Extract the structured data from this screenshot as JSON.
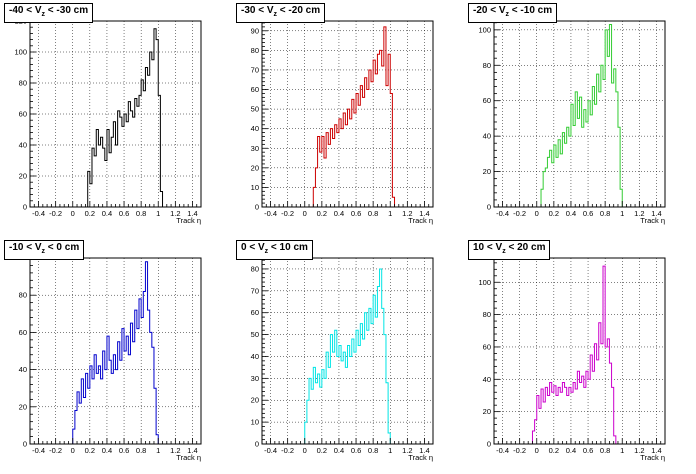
{
  "chart_data": [
    {
      "type": "step-histogram",
      "title": "-40 < V_z < -30 cm",
      "title_parts": {
        "pre": "-40 < V",
        "sub": "z",
        "post": " < -30 cm"
      },
      "xlabel": "Track η",
      "color": "#000000",
      "xlim": [
        -0.5,
        1.5
      ],
      "ylim": [
        0,
        120
      ],
      "xticks": [
        "-0.4",
        "-0.2",
        "0",
        "0.2",
        "0.4",
        "0.6",
        "0.8",
        "1",
        "1.2",
        "1.4"
      ],
      "yticks": [
        0,
        20,
        40,
        60,
        80,
        100,
        120
      ],
      "bins": [
        [
          0.175,
          0.2,
          23
        ],
        [
          0.2,
          0.225,
          15
        ],
        [
          0.225,
          0.25,
          38
        ],
        [
          0.25,
          0.275,
          33
        ],
        [
          0.275,
          0.3,
          50
        ],
        [
          0.3,
          0.325,
          40
        ],
        [
          0.325,
          0.35,
          45
        ],
        [
          0.35,
          0.375,
          38
        ],
        [
          0.375,
          0.4,
          30
        ],
        [
          0.4,
          0.425,
          50
        ],
        [
          0.425,
          0.45,
          35
        ],
        [
          0.45,
          0.475,
          45
        ],
        [
          0.475,
          0.5,
          55
        ],
        [
          0.5,
          0.525,
          40
        ],
        [
          0.525,
          0.55,
          62
        ],
        [
          0.55,
          0.575,
          58
        ],
        [
          0.575,
          0.6,
          52
        ],
        [
          0.6,
          0.625,
          60
        ],
        [
          0.625,
          0.65,
          55
        ],
        [
          0.65,
          0.675,
          68
        ],
        [
          0.675,
          0.7,
          62
        ],
        [
          0.7,
          0.725,
          58
        ],
        [
          0.725,
          0.75,
          70
        ],
        [
          0.75,
          0.775,
          65
        ],
        [
          0.775,
          0.8,
          72
        ],
        [
          0.8,
          0.825,
          82
        ],
        [
          0.825,
          0.85,
          75
        ],
        [
          0.85,
          0.875,
          90
        ],
        [
          0.875,
          0.9,
          85
        ],
        [
          0.9,
          0.925,
          100
        ],
        [
          0.925,
          0.95,
          95
        ],
        [
          0.95,
          0.975,
          115
        ],
        [
          0.975,
          1.0,
          108
        ],
        [
          1.0,
          1.025,
          72
        ],
        [
          1.025,
          1.05,
          10
        ]
      ]
    },
    {
      "type": "step-histogram",
      "title": "-30 < V_z < -20 cm",
      "title_parts": {
        "pre": "-30 < V",
        "sub": "z",
        "post": " < -20 cm"
      },
      "xlabel": "Track η",
      "color": "#cc0000",
      "xlim": [
        -0.5,
        1.5
      ],
      "ylim": [
        0,
        95
      ],
      "xticks": [
        "-0.4",
        "-0.2",
        "0",
        "0.2",
        "0.4",
        "0.6",
        "0.8",
        "1",
        "1.2",
        "1.4"
      ],
      "yticks": [
        0,
        10,
        20,
        30,
        40,
        50,
        60,
        70,
        80,
        90
      ],
      "bins": [
        [
          0.1,
          0.125,
          10
        ],
        [
          0.125,
          0.15,
          20
        ],
        [
          0.15,
          0.175,
          36
        ],
        [
          0.175,
          0.2,
          28
        ],
        [
          0.2,
          0.225,
          36
        ],
        [
          0.225,
          0.25,
          25
        ],
        [
          0.25,
          0.275,
          38
        ],
        [
          0.275,
          0.3,
          32
        ],
        [
          0.3,
          0.325,
          40
        ],
        [
          0.325,
          0.35,
          35
        ],
        [
          0.35,
          0.375,
          42
        ],
        [
          0.375,
          0.4,
          38
        ],
        [
          0.4,
          0.425,
          45
        ],
        [
          0.425,
          0.45,
          40
        ],
        [
          0.45,
          0.475,
          48
        ],
        [
          0.475,
          0.5,
          42
        ],
        [
          0.5,
          0.525,
          50
        ],
        [
          0.525,
          0.55,
          45
        ],
        [
          0.55,
          0.575,
          55
        ],
        [
          0.575,
          0.6,
          48
        ],
        [
          0.6,
          0.625,
          58
        ],
        [
          0.625,
          0.65,
          52
        ],
        [
          0.65,
          0.675,
          62
        ],
        [
          0.675,
          0.7,
          56
        ],
        [
          0.7,
          0.725,
          66
        ],
        [
          0.725,
          0.75,
          60
        ],
        [
          0.75,
          0.775,
          70
        ],
        [
          0.775,
          0.8,
          64
        ],
        [
          0.8,
          0.825,
          75
        ],
        [
          0.825,
          0.85,
          68
        ],
        [
          0.85,
          0.875,
          78
        ],
        [
          0.875,
          0.9,
          80
        ],
        [
          0.9,
          0.925,
          72
        ],
        [
          0.925,
          0.95,
          92
        ],
        [
          0.95,
          0.975,
          62
        ],
        [
          0.975,
          1.0,
          78
        ],
        [
          1.0,
          1.025,
          58
        ],
        [
          1.025,
          1.05,
          5
        ]
      ]
    },
    {
      "type": "step-histogram",
      "title": "-20 < V_z < -10 cm",
      "title_parts": {
        "pre": "-20 < V",
        "sub": "z",
        "post": " < -10 cm"
      },
      "xlabel": "Track η",
      "color": "#33cc33",
      "xlim": [
        -0.5,
        1.5
      ],
      "ylim": [
        0,
        105
      ],
      "xticks": [
        "-0.4",
        "-0.2",
        "0",
        "0.2",
        "0.4",
        "0.6",
        "0.8",
        "1",
        "1.2",
        "1.4"
      ],
      "yticks": [
        0,
        20,
        40,
        60,
        80,
        100
      ],
      "bins": [
        [
          0.05,
          0.075,
          10
        ],
        [
          0.075,
          0.1,
          20
        ],
        [
          0.1,
          0.125,
          22
        ],
        [
          0.125,
          0.15,
          28
        ],
        [
          0.15,
          0.175,
          32
        ],
        [
          0.175,
          0.2,
          25
        ],
        [
          0.2,
          0.225,
          35
        ],
        [
          0.225,
          0.25,
          28
        ],
        [
          0.25,
          0.275,
          38
        ],
        [
          0.275,
          0.3,
          30
        ],
        [
          0.3,
          0.325,
          42
        ],
        [
          0.325,
          0.35,
          36
        ],
        [
          0.35,
          0.375,
          45
        ],
        [
          0.375,
          0.4,
          40
        ],
        [
          0.4,
          0.425,
          58
        ],
        [
          0.425,
          0.45,
          46
        ],
        [
          0.45,
          0.475,
          65
        ],
        [
          0.475,
          0.5,
          50
        ],
        [
          0.5,
          0.525,
          62
        ],
        [
          0.525,
          0.55,
          45
        ],
        [
          0.55,
          0.575,
          55
        ],
        [
          0.575,
          0.6,
          48
        ],
        [
          0.6,
          0.625,
          60
        ],
        [
          0.625,
          0.65,
          52
        ],
        [
          0.65,
          0.675,
          68
        ],
        [
          0.675,
          0.7,
          58
        ],
        [
          0.7,
          0.725,
          75
        ],
        [
          0.725,
          0.75,
          65
        ],
        [
          0.75,
          0.775,
          80
        ],
        [
          0.775,
          0.8,
          72
        ],
        [
          0.8,
          0.825,
          100
        ],
        [
          0.825,
          0.85,
          85
        ],
        [
          0.85,
          0.875,
          103
        ],
        [
          0.875,
          0.9,
          70
        ],
        [
          0.9,
          0.925,
          78
        ],
        [
          0.925,
          0.95,
          65
        ],
        [
          0.95,
          0.975,
          45
        ],
        [
          0.975,
          1.0,
          10
        ]
      ]
    },
    {
      "type": "step-histogram",
      "title": "-10 < V_z < 0 cm",
      "title_parts": {
        "pre": "-10 < V",
        "sub": "z",
        "post": " < 0 cm"
      },
      "xlabel": "Track η",
      "color": "#0000cc",
      "xlim": [
        -0.5,
        1.5
      ],
      "ylim": [
        0,
        100
      ],
      "xticks": [
        "-0.4",
        "-0.2",
        "0",
        "0.2",
        "0.4",
        "0.6",
        "0.8",
        "1",
        "1.2",
        "1.4"
      ],
      "yticks": [
        0,
        20,
        40,
        60,
        80
      ],
      "bins": [
        [
          0.0,
          0.025,
          8
        ],
        [
          0.025,
          0.05,
          18
        ],
        [
          0.05,
          0.075,
          28
        ],
        [
          0.075,
          0.1,
          22
        ],
        [
          0.1,
          0.125,
          35
        ],
        [
          0.125,
          0.15,
          25
        ],
        [
          0.15,
          0.175,
          38
        ],
        [
          0.175,
          0.2,
          30
        ],
        [
          0.2,
          0.225,
          42
        ],
        [
          0.225,
          0.25,
          35
        ],
        [
          0.25,
          0.275,
          48
        ],
        [
          0.275,
          0.3,
          38
        ],
        [
          0.3,
          0.325,
          42
        ],
        [
          0.325,
          0.35,
          35
        ],
        [
          0.35,
          0.375,
          50
        ],
        [
          0.375,
          0.4,
          40
        ],
        [
          0.4,
          0.425,
          58
        ],
        [
          0.425,
          0.45,
          45
        ],
        [
          0.45,
          0.475,
          38
        ],
        [
          0.475,
          0.5,
          48
        ],
        [
          0.5,
          0.525,
          40
        ],
        [
          0.525,
          0.55,
          55
        ],
        [
          0.55,
          0.575,
          45
        ],
        [
          0.575,
          0.6,
          62
        ],
        [
          0.6,
          0.625,
          50
        ],
        [
          0.625,
          0.65,
          58
        ],
        [
          0.65,
          0.675,
          48
        ],
        [
          0.675,
          0.7,
          65
        ],
        [
          0.7,
          0.725,
          55
        ],
        [
          0.725,
          0.75,
          72
        ],
        [
          0.75,
          0.775,
          62
        ],
        [
          0.775,
          0.8,
          78
        ],
        [
          0.8,
          0.825,
          68
        ],
        [
          0.825,
          0.85,
          82
        ],
        [
          0.85,
          0.875,
          98
        ],
        [
          0.875,
          0.9,
          72
        ],
        [
          0.9,
          0.925,
          60
        ],
        [
          0.925,
          0.95,
          52
        ],
        [
          0.95,
          0.975,
          30
        ],
        [
          0.975,
          1.0,
          5
        ]
      ]
    },
    {
      "type": "step-histogram",
      "title": "0 < V_z < 10 cm",
      "title_parts": {
        "pre": "0 < V",
        "sub": "z",
        "post": " < 10 cm"
      },
      "xlabel": "Track η",
      "color": "#00e5e5",
      "xlim": [
        -0.5,
        1.5
      ],
      "ylim": [
        0,
        85
      ],
      "xticks": [
        "-0.4",
        "-0.2",
        "0",
        "0.2",
        "0.4",
        "0.6",
        "0.8",
        "1",
        "1.2",
        "1.4"
      ],
      "yticks": [
        0,
        10,
        20,
        30,
        40,
        50,
        60,
        70,
        80
      ],
      "bins": [
        [
          0.0,
          0.025,
          10
        ],
        [
          0.025,
          0.05,
          20
        ],
        [
          0.05,
          0.075,
          30
        ],
        [
          0.075,
          0.1,
          25
        ],
        [
          0.1,
          0.125,
          35
        ],
        [
          0.125,
          0.15,
          28
        ],
        [
          0.15,
          0.175,
          32
        ],
        [
          0.175,
          0.2,
          26
        ],
        [
          0.2,
          0.225,
          34
        ],
        [
          0.225,
          0.25,
          30
        ],
        [
          0.25,
          0.275,
          42
        ],
        [
          0.275,
          0.3,
          35
        ],
        [
          0.3,
          0.325,
          50
        ],
        [
          0.325,
          0.35,
          42
        ],
        [
          0.35,
          0.375,
          52
        ],
        [
          0.375,
          0.4,
          40
        ],
        [
          0.4,
          0.425,
          45
        ],
        [
          0.425,
          0.45,
          38
        ],
        [
          0.45,
          0.475,
          42
        ],
        [
          0.475,
          0.5,
          35
        ],
        [
          0.5,
          0.525,
          45
        ],
        [
          0.525,
          0.55,
          40
        ],
        [
          0.55,
          0.575,
          48
        ],
        [
          0.575,
          0.6,
          42
        ],
        [
          0.6,
          0.625,
          52
        ],
        [
          0.625,
          0.65,
          45
        ],
        [
          0.65,
          0.675,
          55
        ],
        [
          0.675,
          0.7,
          48
        ],
        [
          0.7,
          0.725,
          60
        ],
        [
          0.725,
          0.75,
          52
        ],
        [
          0.75,
          0.775,
          62
        ],
        [
          0.775,
          0.8,
          55
        ],
        [
          0.8,
          0.825,
          68
        ],
        [
          0.825,
          0.85,
          58
        ],
        [
          0.85,
          0.875,
          72
        ],
        [
          0.875,
          0.9,
          80
        ],
        [
          0.9,
          0.925,
          62
        ],
        [
          0.925,
          0.95,
          50
        ],
        [
          0.95,
          0.975,
          28
        ],
        [
          0.975,
          1.0,
          5
        ]
      ]
    },
    {
      "type": "step-histogram",
      "title": "10 < V_z < 20 cm",
      "title_parts": {
        "pre": "10 < V",
        "sub": "z",
        "post": " < 20 cm"
      },
      "xlabel": "Track η",
      "color": "#cc00cc",
      "xlim": [
        -0.5,
        1.5
      ],
      "ylim": [
        0,
        115
      ],
      "xticks": [
        "-0.4",
        "-0.2",
        "0",
        "0.2",
        "0.4",
        "0.6",
        "0.8",
        "1",
        "1.2",
        "1.4"
      ],
      "yticks": [
        0,
        20,
        40,
        60,
        80,
        100
      ],
      "bins": [
        [
          -0.05,
          -0.025,
          8
        ],
        [
          -0.025,
          0.0,
          15
        ],
        [
          0.0,
          0.025,
          30
        ],
        [
          0.025,
          0.05,
          22
        ],
        [
          0.05,
          0.075,
          34
        ],
        [
          0.075,
          0.1,
          26
        ],
        [
          0.1,
          0.125,
          35
        ],
        [
          0.125,
          0.15,
          30
        ],
        [
          0.15,
          0.175,
          38
        ],
        [
          0.175,
          0.2,
          32
        ],
        [
          0.2,
          0.225,
          36
        ],
        [
          0.225,
          0.25,
          30
        ],
        [
          0.25,
          0.275,
          35
        ],
        [
          0.275,
          0.3,
          32
        ],
        [
          0.3,
          0.325,
          38
        ],
        [
          0.325,
          0.35,
          35
        ],
        [
          0.35,
          0.375,
          30
        ],
        [
          0.375,
          0.4,
          35
        ],
        [
          0.4,
          0.425,
          32
        ],
        [
          0.425,
          0.45,
          38
        ],
        [
          0.45,
          0.475,
          34
        ],
        [
          0.475,
          0.5,
          45
        ],
        [
          0.5,
          0.525,
          38
        ],
        [
          0.525,
          0.55,
          42
        ],
        [
          0.55,
          0.575,
          35
        ],
        [
          0.575,
          0.6,
          45
        ],
        [
          0.6,
          0.625,
          40
        ],
        [
          0.625,
          0.65,
          55
        ],
        [
          0.65,
          0.675,
          45
        ],
        [
          0.675,
          0.7,
          62
        ],
        [
          0.7,
          0.725,
          52
        ],
        [
          0.725,
          0.75,
          75
        ],
        [
          0.75,
          0.775,
          62
        ],
        [
          0.775,
          0.8,
          110
        ],
        [
          0.8,
          0.825,
          60
        ],
        [
          0.825,
          0.85,
          65
        ],
        [
          0.85,
          0.875,
          50
        ],
        [
          0.875,
          0.9,
          35
        ],
        [
          0.9,
          0.925,
          5
        ]
      ]
    }
  ]
}
